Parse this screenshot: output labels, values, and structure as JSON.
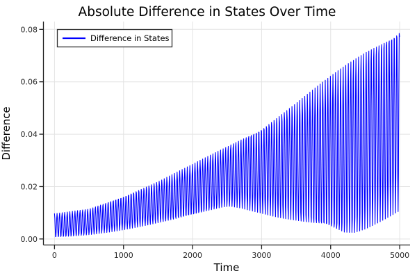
{
  "title": "Absolute Difference in States Over Time",
  "axes": {
    "x_label": "Time",
    "y_label": "Difference"
  },
  "legend": {
    "label": "Difference in States",
    "series_color": "#0000FF",
    "position": "top-left"
  },
  "colors": {
    "series": "#0000FF",
    "grid": "#E3E3E3",
    "spine": "#1F1F1F",
    "tick_text": "#262626",
    "text": "#000000",
    "background": "#FFFFFF",
    "legend_border": "#2E2E2E"
  },
  "chart_data": {
    "type": "line",
    "title": "Absolute Difference in States Over Time",
    "xlabel": "Time",
    "ylabel": "Difference",
    "xlim": [
      -160,
      5150
    ],
    "ylim": [
      -0.0023,
      0.083
    ],
    "x_ticks": [
      0,
      1000,
      2000,
      3000,
      4000,
      5000
    ],
    "x_tick_labels": [
      "0",
      "1000",
      "2000",
      "3000",
      "4000",
      "5000"
    ],
    "y_ticks": [
      0,
      0.02,
      0.04,
      0.06,
      0.08
    ],
    "y_tick_labels": [
      "0.00",
      "0.02",
      "0.04",
      "0.06",
      "0.08"
    ],
    "grid": true,
    "legend_position": "top-left",
    "series": [
      {
        "name": "Difference in States",
        "color": "#0000FF",
        "x_range": [
          0,
          5000
        ],
        "oscillation_period": 37,
        "waveform": "value(t) = lower(t) + (upper(t)-lower(t)) * (0.5 + 0.5*cos(2*pi*t/period)); rapid oscillation filling the band between the envelopes",
        "upper_envelope": [
          [
            0,
            0.0096
          ],
          [
            500,
            0.0115
          ],
          [
            1000,
            0.0165
          ],
          [
            1500,
            0.022
          ],
          [
            2000,
            0.0285
          ],
          [
            2500,
            0.0355
          ],
          [
            3000,
            0.043
          ],
          [
            3500,
            0.0522
          ],
          [
            4000,
            0.0622
          ],
          [
            4500,
            0.0722
          ],
          [
            5000,
            0.0815
          ]
        ],
        "lower_envelope": [
          [
            0,
            0.0004
          ],
          [
            250,
            0.0008
          ],
          [
            500,
            0.0015
          ],
          [
            750,
            0.0024
          ],
          [
            1000,
            0.0035
          ],
          [
            1250,
            0.0047
          ],
          [
            1500,
            0.006
          ],
          [
            1750,
            0.0072
          ],
          [
            2000,
            0.0086
          ],
          [
            2250,
            0.0105
          ],
          [
            2450,
            0.012
          ],
          [
            2550,
            0.0123
          ],
          [
            2700,
            0.0117
          ],
          [
            3000,
            0.0098
          ],
          [
            3250,
            0.008
          ],
          [
            3500,
            0.0064
          ],
          [
            3750,
            0.0045
          ],
          [
            4000,
            0.0026
          ],
          [
            4200,
            0.0009
          ],
          [
            4350,
            0.0014
          ],
          [
            4500,
            0.0032
          ],
          [
            4700,
            0.0062
          ],
          [
            4850,
            0.0085
          ],
          [
            5000,
            0.0108
          ]
        ]
      }
    ]
  }
}
